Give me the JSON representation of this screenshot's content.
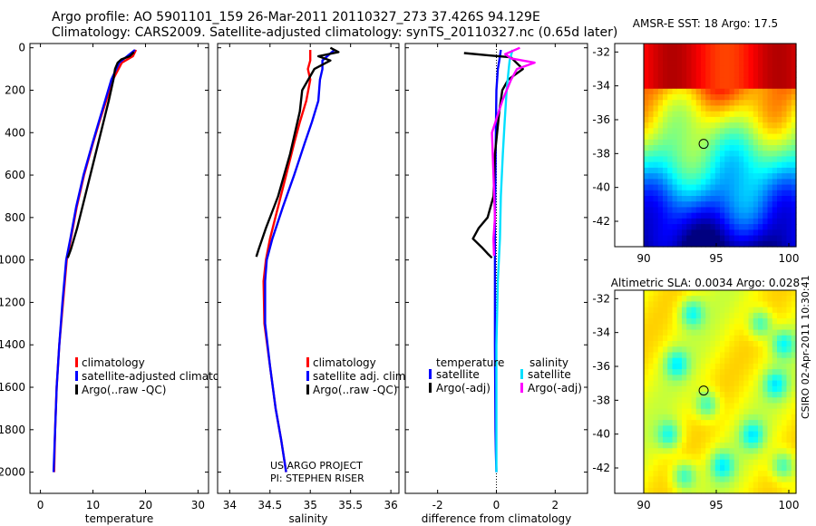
{
  "header": {
    "line1": "Argo profile: AO 5901101_159 26-Mar-2011 20110327_273 37.426S 94.129E",
    "line2": "Climatology: CARS2009. Satellite-adjusted climatology: synTS_20110327.nc (0.65d later)"
  },
  "side_credit": "CSIRO 02-Apr-2011 10:30:41",
  "chart_data": [
    {
      "id": "temperature",
      "type": "line",
      "xlabel": "temperature",
      "ylabel": "",
      "xlim": [
        -2,
        32
      ],
      "ylim": [
        2100,
        -20
      ],
      "xticks": [
        0,
        10,
        20,
        30
      ],
      "yticks": [
        0,
        200,
        400,
        600,
        800,
        1000,
        1200,
        1400,
        1600,
        1800,
        2000
      ],
      "legend": {
        "position": "lower-middle",
        "entries": [
          "climatology",
          "satellite-adjusted climatolog",
          "Argo(..raw -QC)"
        ]
      },
      "series": [
        {
          "name": "climatology",
          "color": "#ff0000",
          "x": [
            18.2,
            17.6,
            15.5,
            13.8,
            12.5,
            11.2,
            10.0,
            8.3,
            6.9,
            5.8,
            5.0,
            4.3,
            3.6,
            3.1,
            2.8,
            2.6
          ],
          "y": [
            10,
            40,
            70,
            150,
            250,
            350,
            450,
            600,
            750,
            900,
            1000,
            1200,
            1400,
            1600,
            1800,
            2000
          ]
        },
        {
          "name": "satellite-adjusted climatolog",
          "color": "#0000ff",
          "x": [
            18.0,
            16.5,
            15.0,
            13.5,
            12.3,
            11.1,
            9.9,
            8.2,
            6.8,
            5.7,
            4.9,
            4.2,
            3.6,
            3.1,
            2.8,
            2.5
          ],
          "y": [
            10,
            40,
            70,
            150,
            250,
            350,
            450,
            600,
            750,
            900,
            1000,
            1200,
            1400,
            1600,
            1800,
            2000
          ]
        },
        {
          "name": "Argo(..raw -QC)",
          "color": "#000000",
          "x": [
            17.8,
            17.0,
            15.4,
            14.7,
            14.2,
            13.9,
            13.0,
            11.5,
            10.0,
            8.5,
            7.0,
            5.8,
            5.2
          ],
          "y": [
            20,
            40,
            55,
            70,
            100,
            150,
            250,
            400,
            550,
            700,
            850,
            950,
            990
          ]
        }
      ]
    },
    {
      "id": "salinity",
      "type": "line",
      "xlabel": "salinity",
      "ylabel": "",
      "xlim": [
        33.85,
        36.1
      ],
      "ylim": [
        2100,
        -20
      ],
      "xticks": [
        34,
        34.5,
        35,
        35.5,
        36
      ],
      "legend": {
        "position": "lower-middle",
        "entries": [
          "climatology",
          "satellite adj. clim.",
          "Argo(..raw -QC)"
        ]
      },
      "annotations": [
        "US ARGO PROJECT",
        "PI: STEPHEN RISER"
      ],
      "series": [
        {
          "name": "climatology",
          "color": "#ff0000",
          "x": [
            35.0,
            35.0,
            34.97,
            35.0,
            34.95,
            34.87,
            34.8,
            34.7,
            34.6,
            34.5,
            34.45,
            34.42,
            34.43,
            34.5,
            34.57,
            34.64,
            34.7
          ],
          "y": [
            10,
            60,
            100,
            150,
            250,
            350,
            450,
            600,
            750,
            900,
            1000,
            1100,
            1300,
            1500,
            1700,
            1850,
            2000
          ]
        },
        {
          "name": "satellite adj. clim.",
          "color": "#0000ff",
          "x": [
            35.3,
            35.15,
            35.15,
            35.12,
            35.1,
            35.02,
            34.93,
            34.8,
            34.66,
            34.53,
            34.46,
            34.44,
            34.44,
            34.5,
            34.57,
            34.64,
            34.7
          ],
          "y": [
            10,
            60,
            100,
            150,
            250,
            350,
            450,
            600,
            750,
            900,
            1000,
            1100,
            1300,
            1500,
            1700,
            1850,
            2000
          ]
        },
        {
          "name": "Argo(..raw -QC)",
          "color": "#000000",
          "x": [
            35.25,
            35.35,
            35.1,
            35.25,
            35.05,
            34.9,
            34.87,
            34.75,
            34.6,
            34.45,
            34.36,
            34.33
          ],
          "y": [
            0,
            20,
            40,
            60,
            100,
            200,
            300,
            500,
            700,
            850,
            950,
            985
          ]
        }
      ]
    },
    {
      "id": "difference",
      "type": "line",
      "xlabel": "difference from climatology",
      "ylabel": "",
      "xlim": [
        -3.1,
        3.1
      ],
      "ylim": [
        2100,
        -20
      ],
      "xticks": [
        -2,
        0,
        2
      ],
      "legend": {
        "position": "lower-middle",
        "titles": [
          "temperature",
          "salinity"
        ],
        "entries": [
          "satellite",
          "Argo(-adj)",
          "satellite",
          "Argo(-adj)"
        ]
      },
      "series": [
        {
          "name": "satellite",
          "group": "temperature",
          "color": "#0000ff",
          "x": [
            0.15,
            0.1,
            0.05,
            0.0,
            -0.02,
            -0.03,
            -0.05,
            -0.05,
            -0.05,
            -0.05,
            -0.04,
            -0.03,
            -0.02,
            0.0
          ],
          "y": [
            10,
            60,
            100,
            200,
            400,
            600,
            800,
            1000,
            1200,
            1400,
            1600,
            1800,
            1900,
            2000
          ]
        },
        {
          "name": "Argo(-adj)",
          "group": "temperature",
          "color": "#000000",
          "x": [
            -1.1,
            -0.3,
            0.5,
            0.6,
            0.9,
            0.4,
            0.2,
            0.1,
            -0.05,
            -0.1,
            -0.3,
            -0.6,
            -0.8,
            -0.5,
            -0.3,
            -0.15
          ],
          "y": [
            25,
            35,
            45,
            60,
            100,
            150,
            200,
            300,
            500,
            700,
            800,
            850,
            900,
            940,
            970,
            990
          ]
        },
        {
          "name": "satellite",
          "group": "salinity",
          "color": "#00e0ff",
          "x": [
            0.55,
            0.45,
            0.42,
            0.35,
            0.28,
            0.22,
            0.15,
            0.12,
            0.05,
            0.0,
            0.0,
            0.0
          ],
          "y": [
            10,
            60,
            100,
            200,
            350,
            500,
            700,
            900,
            1100,
            1400,
            1700,
            2000
          ]
        },
        {
          "name": "Argo(-adj)",
          "group": "salinity",
          "color": "#ff00ff",
          "x": [
            0.8,
            0.3,
            0.5,
            1.3,
            0.7,
            0.5,
            0.2,
            -0.15,
            -0.1,
            -0.05,
            -0.1,
            -0.08
          ],
          "y": [
            0,
            30,
            50,
            70,
            100,
            150,
            250,
            400,
            600,
            800,
            900,
            980
          ]
        }
      ]
    },
    {
      "id": "sst-map",
      "type": "heatmap",
      "title": "AMSR-E SST: 18 Argo: 17.5",
      "xlim": [
        88,
        100.5
      ],
      "ylim": [
        -43.5,
        -31.5
      ],
      "xticks": [
        90,
        95,
        100
      ],
      "yticks": [
        -32,
        -34,
        -36,
        -38,
        -40,
        -42
      ],
      "data_extent_x": [
        90,
        100.5
      ],
      "argo_position": [
        94.129,
        -37.426
      ],
      "colormap": "jet",
      "pattern": "warm in north, cooling southward with wavy fronts"
    },
    {
      "id": "sla-map",
      "type": "heatmap",
      "title": "Altimetric SLA: 0.0034 Argo: 0.028",
      "xlim": [
        88,
        100.5
      ],
      "ylim": [
        -43.5,
        -31.5
      ],
      "xticks": [
        90,
        95,
        100
      ],
      "yticks": [
        -32,
        -34,
        -36,
        -38,
        -40,
        -42
      ],
      "data_extent_x": [
        90,
        100.5
      ],
      "argo_position": [
        94.129,
        -37.426
      ],
      "colormap": "jet",
      "pattern": "mostly yellow-green with scattered green eddies"
    }
  ]
}
